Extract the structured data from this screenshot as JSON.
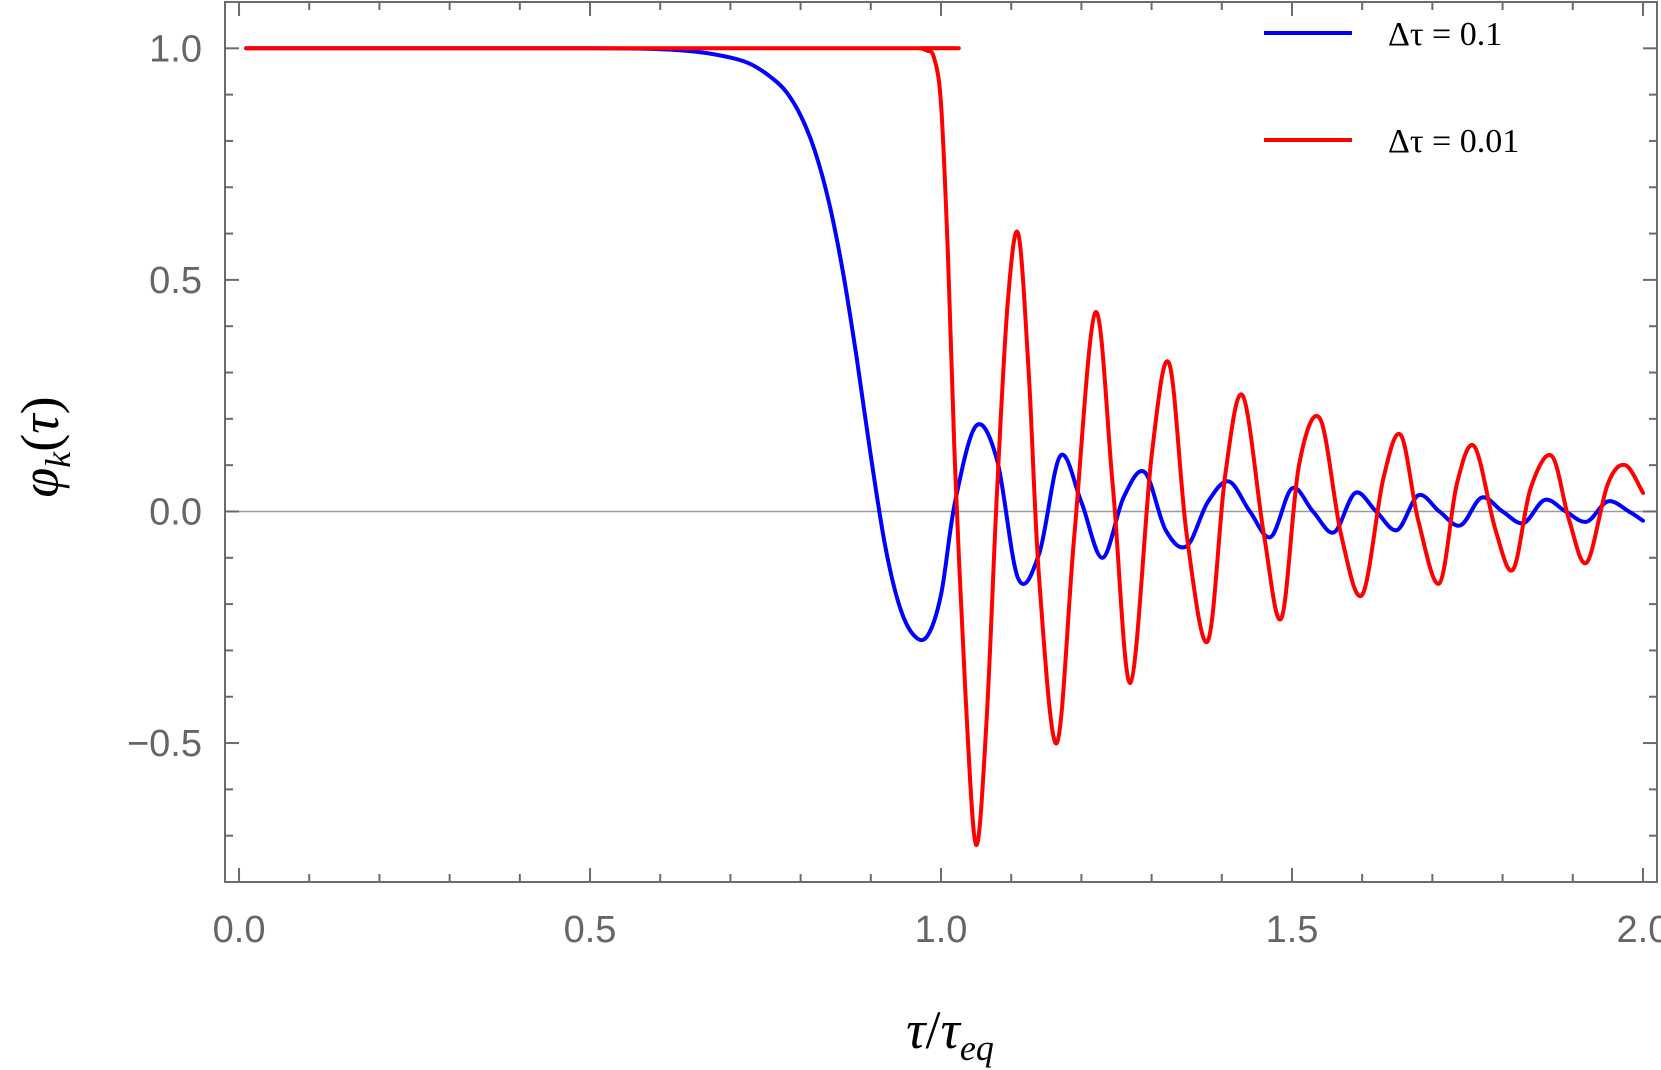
{
  "chart_data": {
    "type": "line",
    "title": "",
    "xlabel": "τ/τ_eq",
    "ylabel": "φ_k(τ)",
    "xlim": [
      -0.02,
      2.02
    ],
    "ylim": [
      -0.8,
      1.1
    ],
    "x_ticks": [
      0.0,
      0.5,
      1.0,
      1.5,
      2.0
    ],
    "x_tick_labels": [
      "0.0",
      "0.5",
      "1.0",
      "1.5",
      "2.0"
    ],
    "y_ticks": [
      -0.5,
      0.0,
      0.5,
      1.0
    ],
    "y_tick_labels": [
      "−0.5",
      "0.0",
      "0.5",
      "1.0"
    ],
    "grid": false,
    "zero_line": true,
    "legend_position": "top-right",
    "series": [
      {
        "name": "Δτ = 0.1",
        "color": "#0000ff",
        "x": [
          0.01,
          0.5,
          0.6,
          0.65,
          0.7,
          0.73,
          0.76,
          0.78,
          0.8,
          0.82,
          0.84,
          0.86,
          0.88,
          0.9,
          0.92,
          0.94,
          0.96,
          0.98,
          1.0,
          1.02,
          1.05,
          1.08,
          1.11,
          1.14,
          1.17,
          1.2,
          1.23,
          1.26,
          1.29,
          1.32,
          1.35,
          1.38,
          1.41,
          1.44,
          1.47,
          1.5,
          1.53,
          1.56,
          1.59,
          1.62,
          1.65,
          1.68,
          1.71,
          1.74,
          1.77,
          1.8,
          1.83,
          1.86,
          1.89,
          1.92,
          1.95,
          1.98,
          2.0
        ],
        "y": [
          1.0,
          1.0,
          0.998,
          0.993,
          0.98,
          0.965,
          0.935,
          0.905,
          0.855,
          0.78,
          0.67,
          0.52,
          0.33,
          0.12,
          -0.07,
          -0.2,
          -0.265,
          -0.27,
          -0.18,
          0.02,
          0.185,
          0.11,
          -0.145,
          -0.09,
          0.12,
          0.02,
          -0.1,
          0.03,
          0.085,
          -0.04,
          -0.075,
          0.02,
          0.065,
          0.0,
          -0.055,
          0.05,
          0.0,
          -0.045,
          0.04,
          0.0,
          -0.04,
          0.035,
          0.0,
          -0.03,
          0.03,
          0.0,
          -0.025,
          0.025,
          0.0,
          -0.022,
          0.022,
          0.0,
          -0.02
        ]
      },
      {
        "name": "Δτ = 0.01",
        "color": "#ff0000",
        "x": [
          0.01,
          0.95,
          0.97,
          0.98,
          0.99,
          1.0,
          1.01,
          1.02,
          1.035,
          1.05,
          1.065,
          1.08,
          1.095,
          1.11,
          1.125,
          1.14,
          1.165,
          1.19,
          1.22,
          1.245,
          1.27,
          1.3,
          1.325,
          1.35,
          1.38,
          1.405,
          1.43,
          1.46,
          1.485,
          1.51,
          1.54,
          1.57,
          1.6,
          1.63,
          1.655,
          1.68,
          1.71,
          1.735,
          1.76,
          1.79,
          1.815,
          1.84,
          1.87,
          1.895,
          1.92,
          1.95,
          1.975,
          2.0
        ],
        "y": [
          1.0,
          1.0,
          1.0,
          0.995,
          0.98,
          0.88,
          0.55,
          0.1,
          -0.4,
          -0.72,
          -0.45,
          0.05,
          0.45,
          0.6,
          0.3,
          -0.15,
          -0.5,
          -0.05,
          0.43,
          0.05,
          -0.37,
          0.12,
          0.32,
          -0.05,
          -0.28,
          0.08,
          0.25,
          -0.05,
          -0.23,
          0.1,
          0.2,
          -0.05,
          -0.18,
          0.07,
          0.165,
          -0.02,
          -0.155,
          0.06,
          0.14,
          -0.04,
          -0.125,
          0.05,
          0.12,
          -0.02,
          -0.11,
          0.06,
          0.1,
          0.04
        ]
      }
    ]
  }
}
